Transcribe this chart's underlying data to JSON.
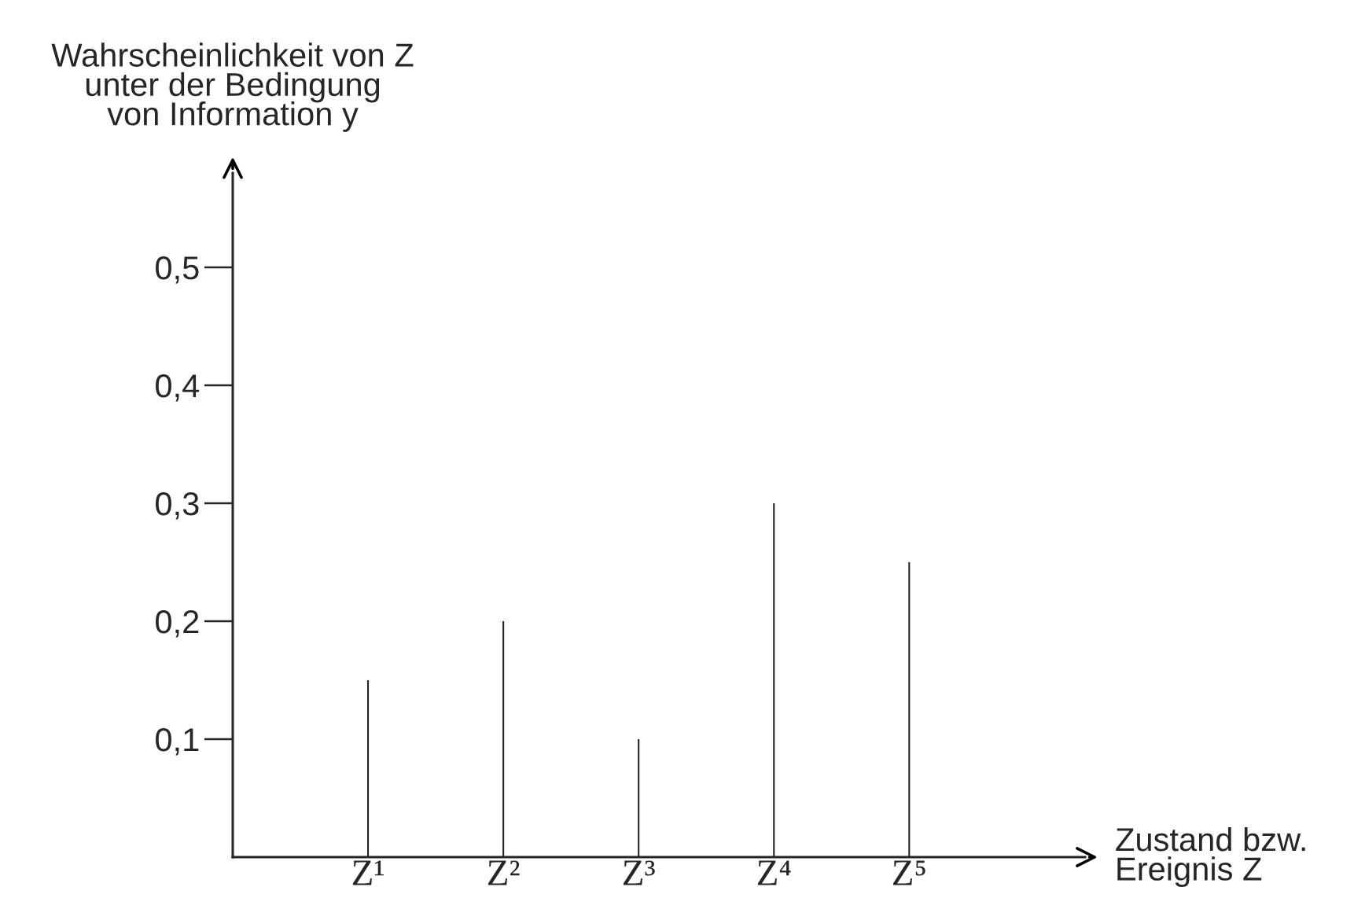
{
  "chart_data": {
    "type": "bar",
    "ylabel": "Wahrscheinlichkeit von Z\nunter der Bedingung\nvon Information y",
    "xlabel": "Zustand bzw.\nEreignis Z",
    "categories": [
      "Z¹",
      "Z²",
      "Z³",
      "Z⁴",
      "Z⁵"
    ],
    "values": [
      0.15,
      0.2,
      0.1,
      0.3,
      0.25
    ],
    "color": "#222222",
    "ylim": [
      0,
      0.58
    ],
    "yticks": [
      {
        "value": 0.1,
        "label": "0,1"
      },
      {
        "value": 0.2,
        "label": "0,2"
      },
      {
        "value": 0.3,
        "label": "0,3"
      },
      {
        "value": 0.4,
        "label": "0,4"
      },
      {
        "value": 0.5,
        "label": "0,5"
      }
    ],
    "grid": false,
    "legend": false
  }
}
